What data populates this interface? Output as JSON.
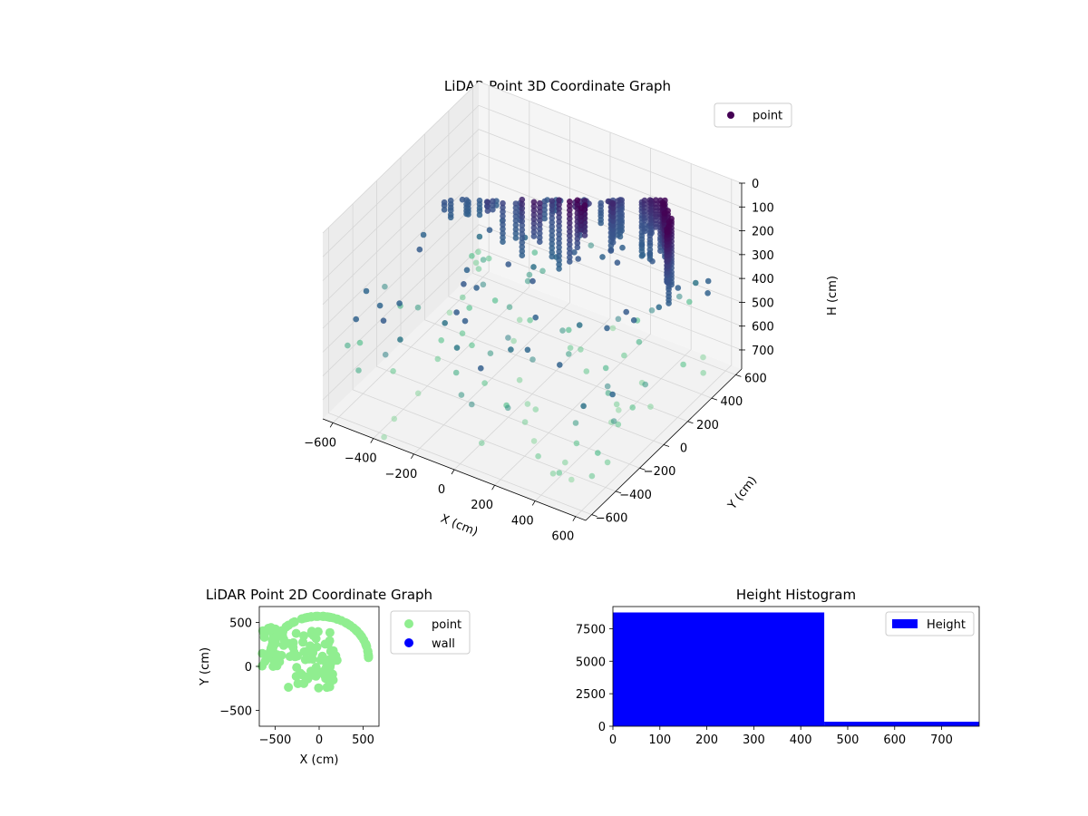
{
  "chart_data": [
    {
      "type": "scatter3d",
      "title": "LiDAR Point 3D Coordinate Graph",
      "xlabel": "X (cm)",
      "ylabel": "Y (cm)",
      "zlabel": "H (cm)",
      "xlim": [
        -650,
        650
      ],
      "ylim": [
        -650,
        650
      ],
      "zlim": [
        0,
        780
      ],
      "z_inverted": true,
      "xticks": [
        -600,
        -400,
        -200,
        0,
        200,
        400,
        600
      ],
      "yticks": [
        -600,
        -400,
        -200,
        0,
        200,
        400,
        600
      ],
      "zticks": [
        0,
        100,
        200,
        300,
        400,
        500,
        600,
        700
      ],
      "grid": true,
      "legend": {
        "position": "top-right",
        "entries": [
          "point"
        ]
      },
      "series": [
        {
          "name": "point",
          "colormap": "viridis",
          "color_low": "#440154",
          "color_mid": "#31688e",
          "color_high": "#90d7a0"
        }
      ]
    },
    {
      "type": "scatter",
      "title": "LiDAR Point 2D Coordinate Graph",
      "xlabel": "X (cm)",
      "ylabel": "Y (cm)",
      "xlim": [
        -680,
        680
      ],
      "ylim": [
        -680,
        680
      ],
      "xticks": [
        -500,
        0,
        500
      ],
      "yticks": [
        -500,
        0,
        500
      ],
      "legend": {
        "position": "right",
        "entries": [
          "point",
          "wall"
        ]
      },
      "series": [
        {
          "name": "point",
          "color": "#90ee90"
        },
        {
          "name": "wall",
          "color": "#0000ff",
          "points": []
        }
      ]
    },
    {
      "type": "bar",
      "title": "Height Histogram",
      "xlim": [
        0,
        780
      ],
      "ylim": [
        0,
        9200
      ],
      "xticks": [
        0,
        100,
        200,
        300,
        400,
        500,
        600,
        700
      ],
      "yticks": [
        0,
        2500,
        5000,
        7500
      ],
      "bins": [
        {
          "x0": 0,
          "x1": 450,
          "count": 8750
        },
        {
          "x0": 450,
          "x1": 780,
          "count": 350
        }
      ],
      "legend": {
        "position": "top-right",
        "entries": [
          "Height"
        ]
      },
      "series": [
        {
          "name": "Height",
          "color": "#0000ff"
        }
      ]
    }
  ]
}
